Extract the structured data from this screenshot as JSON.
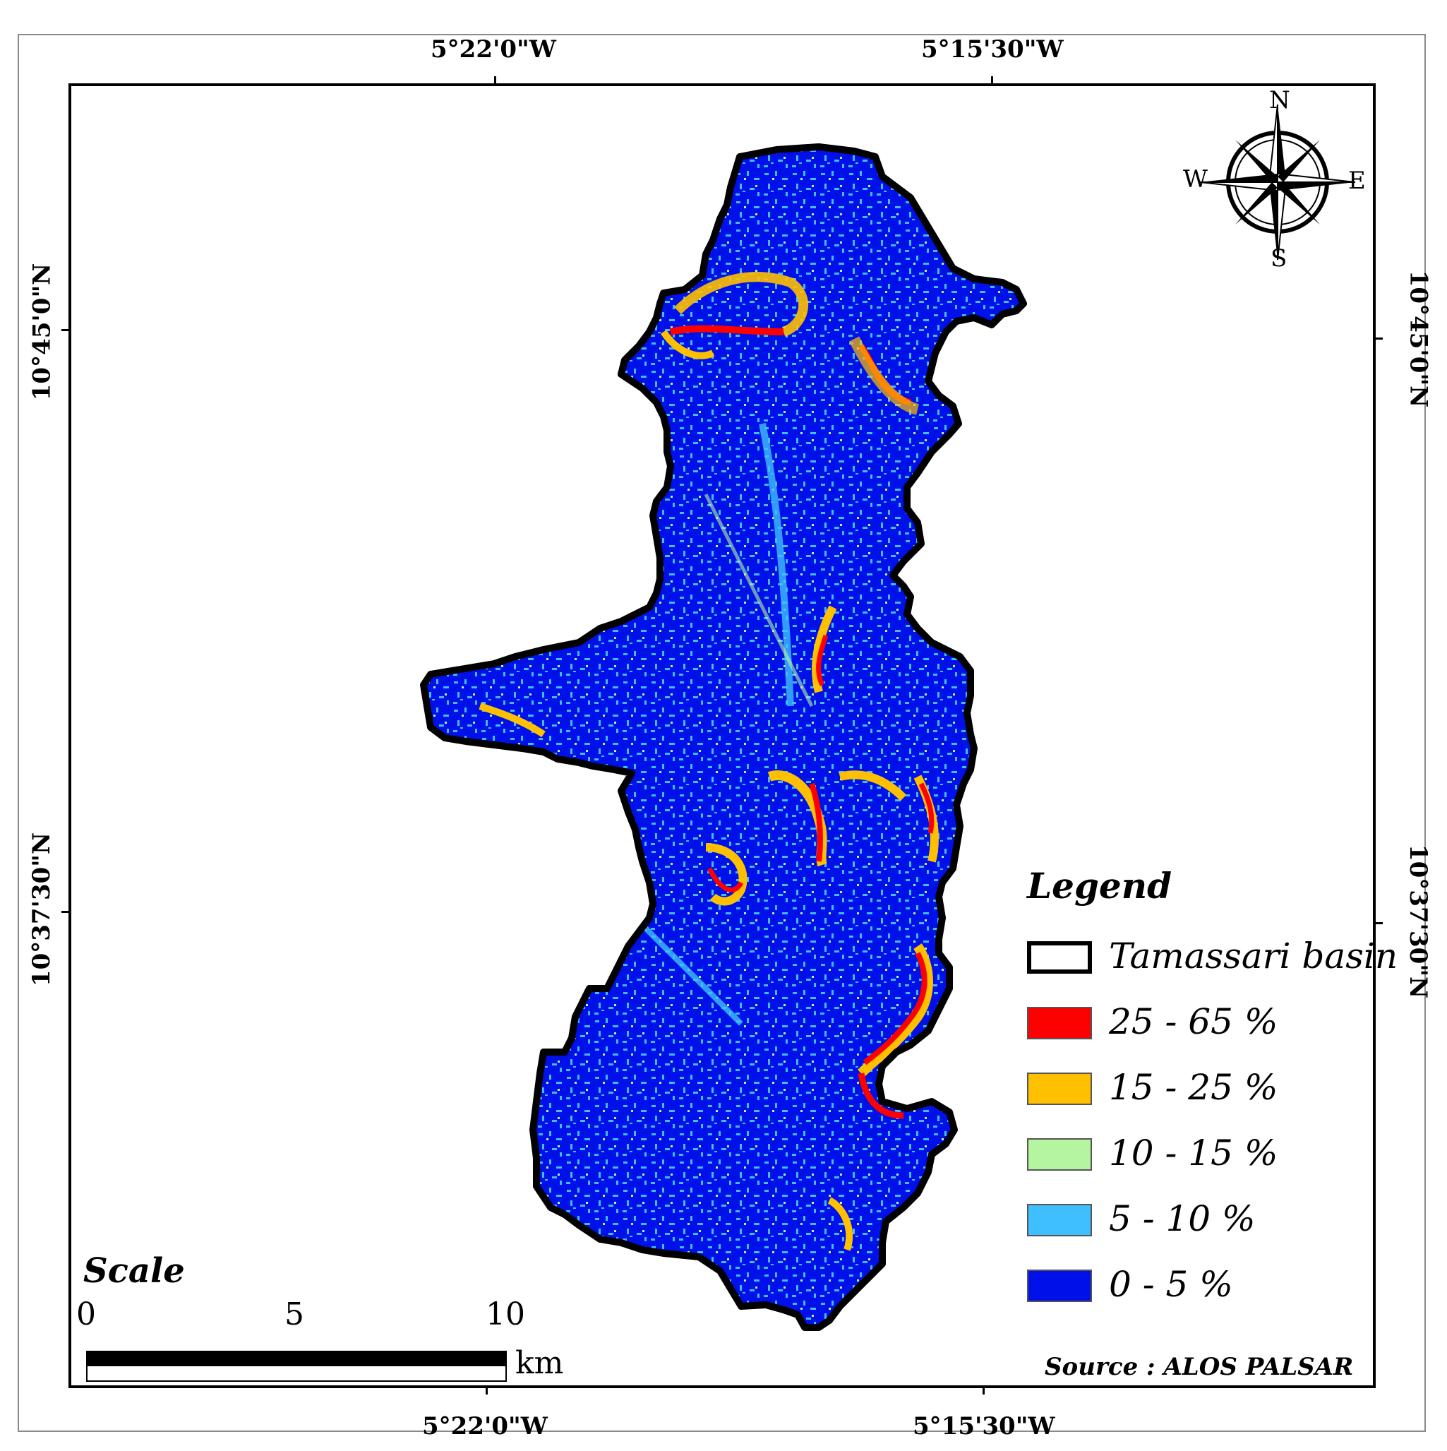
{
  "coordinates": {
    "top": [
      "5°22'0\"W",
      "5°15'30\"W"
    ],
    "bottom": [
      "5°22'0\"W",
      "5°15'30\"W"
    ],
    "left": [
      "10°45'0\"N",
      "10°37'30\"N"
    ],
    "right": [
      "10°45'0\"N",
      "10°37'30\"N"
    ]
  },
  "compass": {
    "north": "N",
    "south": "S",
    "east": "E",
    "west": "W"
  },
  "legend": {
    "title": "Legend",
    "items": [
      {
        "label": "Tamassari basin",
        "color": "#ffffff",
        "border": "#000000"
      },
      {
        "label": "25 - 65 %",
        "color": "#ff0000"
      },
      {
        "label": "15 - 25 %",
        "color": "#ffc000"
      },
      {
        "label": "10 - 15 %",
        "color": "#b5f5a0"
      },
      {
        "label": "5 - 10 %",
        "color": "#3fbfff"
      },
      {
        "label": "0 - 5 %",
        "color": "#0010e8"
      }
    ]
  },
  "scale": {
    "title": "Scale",
    "ticks": [
      "0",
      "5",
      "10"
    ],
    "unit": "km"
  },
  "source": "Source : ALOS PALSAR"
}
